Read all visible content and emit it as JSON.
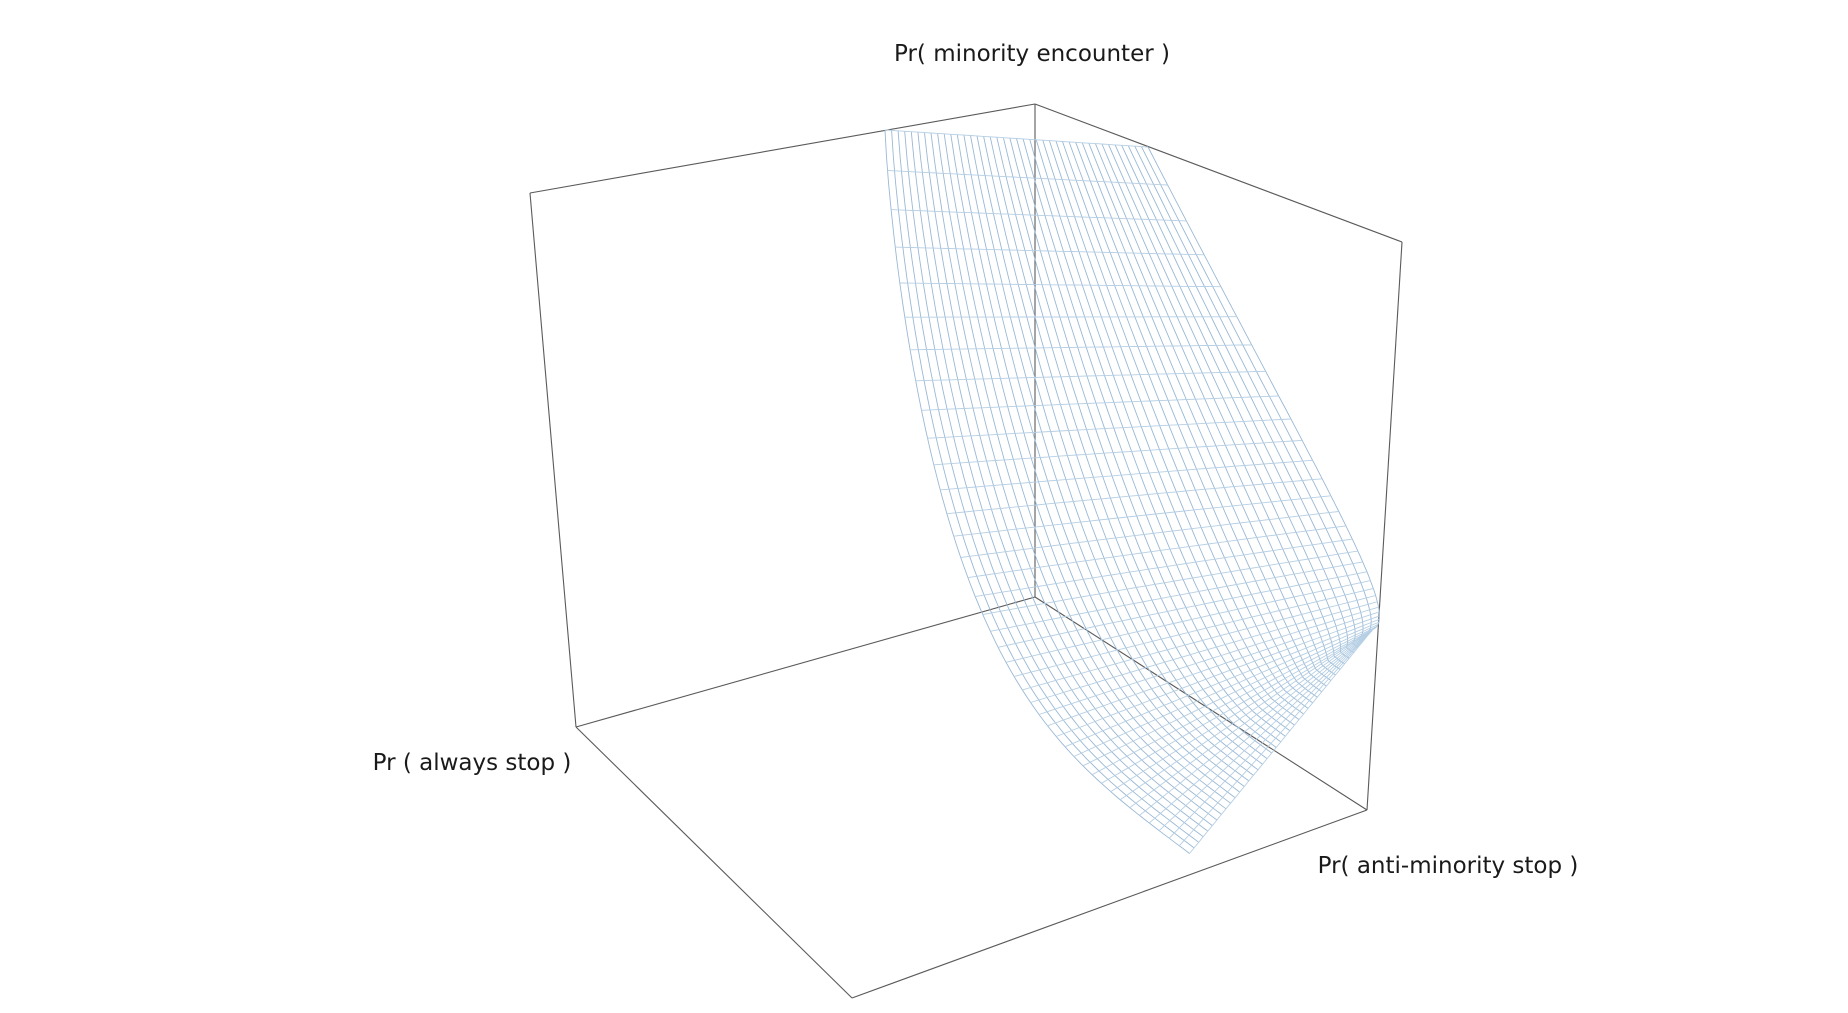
{
  "chart_data": {
    "type": "surface",
    "axes": {
      "x": {
        "title": "Pr( anti-minority stop )"
      },
      "y": {
        "title": "Pr ( always stop )"
      },
      "z": {
        "title": "Pr( minority encounter )"
      }
    },
    "mesh": {
      "rows": 40,
      "cols": 40,
      "style": "wireframe",
      "colors": {
        "row_lines": "#9ab8d4",
        "col_lines": "#b6cfe4"
      }
    },
    "grid": false,
    "legend": "none",
    "box": {
      "edge_color": "#5a5a5a"
    }
  }
}
